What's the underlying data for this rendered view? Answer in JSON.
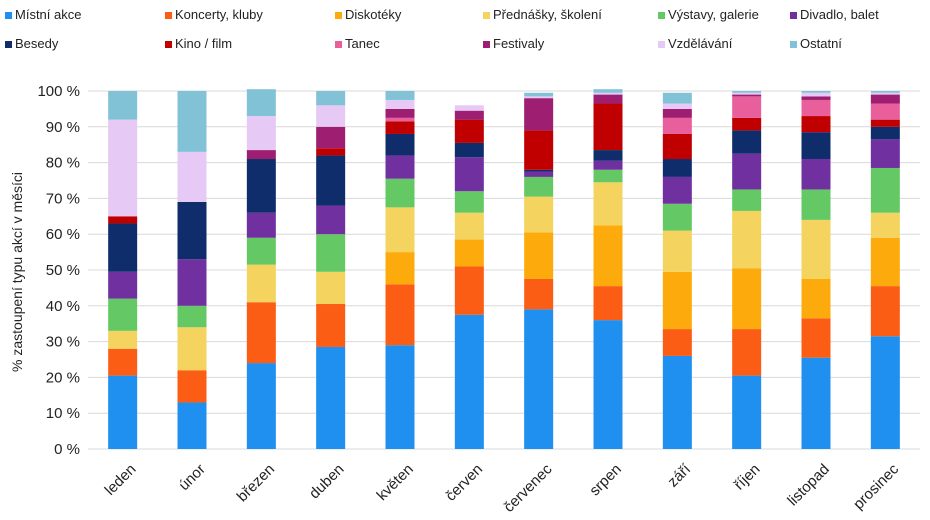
{
  "chart_data": {
    "type": "bar",
    "stacked": true,
    "title": "",
    "xlabel": "",
    "ylabel": "% zastoupení typu akcí v měsíci",
    "ylim": [
      0,
      100
    ],
    "yticks": [
      "0 %",
      "10 %",
      "20 %",
      "30 %",
      "40 %",
      "50 %",
      "60 %",
      "70 %",
      "80 %",
      "90 %",
      "100 %"
    ],
    "grid": true,
    "legend_position": "top",
    "categories": [
      "leden",
      "únor",
      "březen",
      "duben",
      "květen",
      "červen",
      "červenec",
      "srpen",
      "září",
      "říjen",
      "listopad",
      "prosinec"
    ],
    "series": [
      {
        "name": "Místní akce",
        "color": "#1f8ff0",
        "values": [
          20.5,
          13,
          24,
          28.5,
          29,
          37.5,
          39,
          36,
          26,
          20.5,
          25.5,
          31.5
        ]
      },
      {
        "name": "Koncerty, kluby",
        "color": "#fb5d14",
        "values": [
          7.5,
          9,
          17,
          12,
          17,
          13.5,
          8.5,
          9.5,
          7.5,
          13,
          11,
          14
        ]
      },
      {
        "name": "Diskotéky",
        "color": "#fdab0c",
        "values": [
          0,
          0,
          0,
          0,
          9,
          7.5,
          13,
          17,
          16,
          17,
          11,
          13.5
        ]
      },
      {
        "name": "Přednášky, školení",
        "color": "#f4d35e",
        "values": [
          5,
          12,
          10.5,
          9,
          12.5,
          7.5,
          10,
          12,
          11.5,
          16,
          16.5,
          7
        ]
      },
      {
        "name": "Výstavy, galerie",
        "color": "#64c964",
        "values": [
          9,
          6,
          7.5,
          10.5,
          8,
          6,
          5.5,
          3.5,
          7.5,
          6,
          8.5,
          12.5
        ]
      },
      {
        "name": "Divadlo, balet",
        "color": "#7030a0",
        "values": [
          7.5,
          13,
          7,
          8,
          6.5,
          9.5,
          1.5,
          2.5,
          7.5,
          10,
          8.5,
          8
        ]
      },
      {
        "name": "Besedy",
        "color": "#0f2d6b",
        "values": [
          13.5,
          16,
          15,
          14,
          6,
          4,
          0.5,
          3,
          5,
          6.5,
          7.5,
          3.5
        ]
      },
      {
        "name": "Kino / film",
        "color": "#c00000",
        "values": [
          2,
          0,
          0,
          2,
          3.5,
          6.5,
          11,
          13,
          7,
          3.5,
          4.5,
          2
        ]
      },
      {
        "name": "Tanec",
        "color": "#e85f9c",
        "values": [
          0,
          0,
          0,
          0,
          1,
          0,
          0,
          0,
          4.5,
          6,
          4.5,
          4.5
        ]
      },
      {
        "name": "Festivaly",
        "color": "#9e1e72",
        "values": [
          0,
          0,
          2.5,
          6,
          2.5,
          2.5,
          9,
          2.5,
          2.5,
          0.5,
          1,
          2.5
        ]
      },
      {
        "name": "Vzdělávání",
        "color": "#e6c9f5",
        "values": [
          27,
          14,
          9.5,
          6,
          2.5,
          1.5,
          0.5,
          0.5,
          1.5,
          0.5,
          1,
          0.5
        ]
      },
      {
        "name": "Ostatní",
        "color": "#82c2d6",
        "values": [
          8,
          17,
          7.5,
          4,
          2.5,
          0,
          1,
          1,
          3,
          0.5,
          0.5,
          0.5
        ]
      }
    ]
  }
}
